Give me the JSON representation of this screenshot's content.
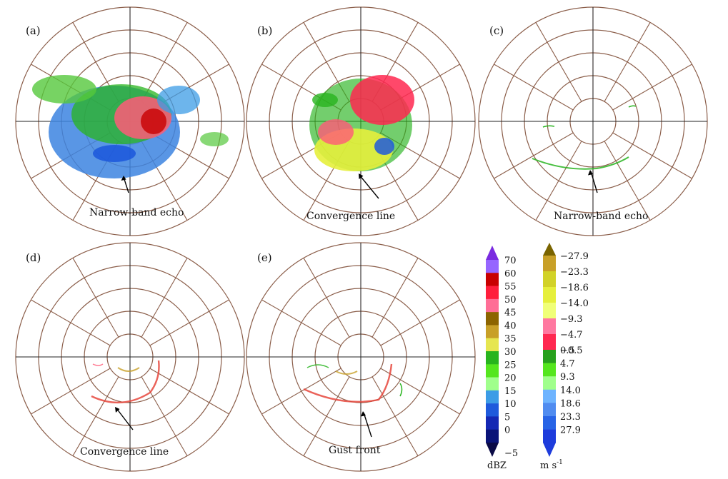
{
  "panels": [
    {
      "id": "a",
      "label": "(a)",
      "annotation": "Narrow-band echo"
    },
    {
      "id": "b",
      "label": "(b)",
      "annotation": "Convergence line"
    },
    {
      "id": "c",
      "label": "(c)",
      "annotation": "Narrow-band echo"
    },
    {
      "id": "d",
      "label": "(d)",
      "annotation": "Convergence line"
    },
    {
      "id": "e",
      "label": "(e)",
      "annotation": "Gust front"
    }
  ],
  "legend_reflectivity": {
    "unit": "dBZ",
    "top_arrow_color": "#7a2be0",
    "bottom_arrow_color": "#0a0a46",
    "bins": [
      {
        "label": "70",
        "color": "#9666ff"
      },
      {
        "label": "60",
        "color": "#c80000"
      },
      {
        "label": "55",
        "color": "#ff1e3c"
      },
      {
        "label": "50",
        "color": "#ff6e96"
      },
      {
        "label": "45",
        "color": "#8c6400"
      },
      {
        "label": "40",
        "color": "#c8a028"
      },
      {
        "label": "35",
        "color": "#e6e650"
      },
      {
        "label": "30",
        "color": "#28b41e"
      },
      {
        "label": "25",
        "color": "#55e61e"
      },
      {
        "label": "20",
        "color": "#a0ff8c"
      },
      {
        "label": "15",
        "color": "#3c9ce6"
      },
      {
        "label": "10",
        "color": "#1e5adc"
      },
      {
        "label": "5",
        "color": "#1428b4"
      },
      {
        "label": "0",
        "color": "#0a1478"
      }
    ],
    "bottom_label": "−5"
  },
  "legend_velocity": {
    "unit": "m s",
    "unit_exp": "-1",
    "top_arrow_color": "#7a6400",
    "bottom_arrow_color": "#1e3cdc",
    "bins_negative": [
      {
        "label": "−27.9",
        "color": "#c8a028"
      },
      {
        "label": "−23.3",
        "color": "#d2d228"
      },
      {
        "label": "−18.6",
        "color": "#e6ef3c"
      },
      {
        "label": "−14.0",
        "color": "#f0ff78"
      },
      {
        "label": "−9.3",
        "color": "#ff78a0"
      },
      {
        "label": "−4.7",
        "color": "#ff2850"
      },
      {
        "label": "−0.5",
        "color": "#c80000"
      }
    ],
    "bins_positive": [
      {
        "label": "0.5",
        "color": "#28a01e"
      },
      {
        "label": "4.7",
        "color": "#55e61e"
      },
      {
        "label": "9.3",
        "color": "#a0ff8c"
      },
      {
        "label": "14.0",
        "color": "#6eb4ff"
      },
      {
        "label": "18.6",
        "color": "#508cf0"
      },
      {
        "label": "23.3",
        "color": "#2864e6"
      },
      {
        "label": "27.9",
        "color": "#1e3cdc"
      }
    ]
  }
}
